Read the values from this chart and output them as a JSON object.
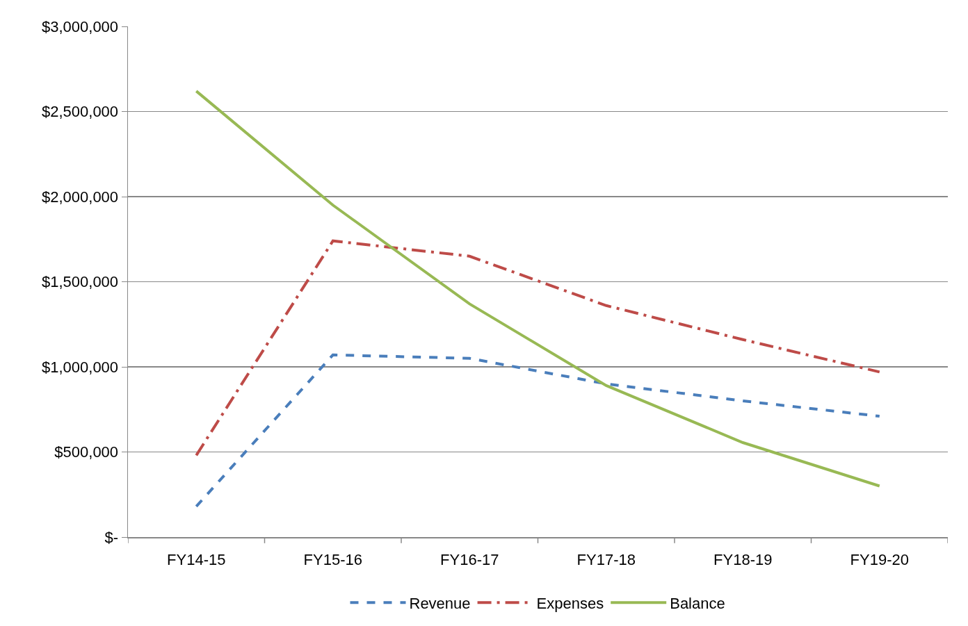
{
  "chart_data": {
    "type": "line",
    "categories": [
      "FY14-15",
      "FY15-16",
      "FY16-17",
      "FY17-18",
      "FY18-19",
      "FY19-20"
    ],
    "series": [
      {
        "name": "Revenue",
        "color": "#4a7ebb",
        "line_style": "dashed",
        "values": [
          180000,
          1070000,
          1050000,
          900000,
          800000,
          710000
        ]
      },
      {
        "name": "Expenses",
        "color": "#be4b48",
        "line_style": "dashdot",
        "values": [
          480000,
          1740000,
          1650000,
          1360000,
          1160000,
          970000
        ]
      },
      {
        "name": "Balance",
        "color": "#98b954",
        "line_style": "solid",
        "values": [
          2620000,
          1950000,
          1370000,
          890000,
          555000,
          300000
        ]
      }
    ],
    "ylim": [
      0,
      3000000
    ],
    "yticks": [
      {
        "value": 0,
        "label": "$-"
      },
      {
        "value": 500000,
        "label": "$500,000"
      },
      {
        "value": 1000000,
        "label": "$1,000,000"
      },
      {
        "value": 1500000,
        "label": "$1,500,000"
      },
      {
        "value": 2000000,
        "label": "$2,000,000"
      },
      {
        "value": 2500000,
        "label": "$2,500,000"
      },
      {
        "value": 3000000,
        "label": "$3,000,000"
      }
    ],
    "grid": "y",
    "legend": "bottom",
    "marker": "none"
  }
}
